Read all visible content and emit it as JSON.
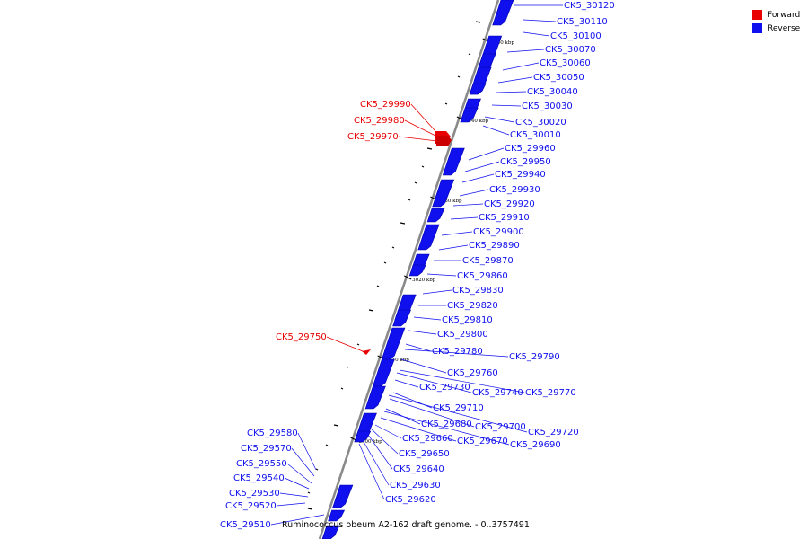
{
  "colors": {
    "forward": "#e80000",
    "reverse": "#1010ee",
    "backbone": "#8a8a8a"
  },
  "legend": {
    "forward": "Forward",
    "reverse": "Reverse"
  },
  "caption": "Ruminococcus obeum A2-162 draft genome. - 0..3757491",
  "ticks": [
    "3050 kbp",
    "3040 kbp",
    "3030 kbp",
    "3020 kbp",
    "3010 kbp",
    "3000 kbp"
  ],
  "forward_genes": [
    "CK5_29990",
    "CK5_29980",
    "CK5_29970",
    "CK5_29750"
  ],
  "reverse_genes_right": [
    "CK5_30120",
    "CK5_30110",
    "CK5_30100",
    "CK5_30070",
    "CK5_30060",
    "CK5_30050",
    "CK5_30040",
    "CK5_30030",
    "CK5_30020",
    "CK5_30010",
    "CK5_29960",
    "CK5_29950",
    "CK5_29940",
    "CK5_29930",
    "CK5_29920",
    "CK5_29910",
    "CK5_29900",
    "CK5_29890",
    "CK5_29870",
    "CK5_29860",
    "CK5_29830",
    "CK5_29820",
    "CK5_29810",
    "CK5_29800",
    "CK5_29780",
    "CK5_29790",
    "CK5_29760",
    "CK5_29730",
    "CK5_29740",
    "CK5_29770",
    "CK5_29710",
    "CK5_29680",
    "CK5_29700",
    "CK5_29720",
    "CK5_29660",
    "CK5_29670",
    "CK5_29690",
    "CK5_29650",
    "CK5_29640",
    "CK5_29630",
    "CK5_29620"
  ],
  "reverse_genes_left": [
    "CK5_29580",
    "CK5_29570",
    "CK5_29550",
    "CK5_29540",
    "CK5_29530",
    "CK5_29520",
    "CK5_29510"
  ]
}
